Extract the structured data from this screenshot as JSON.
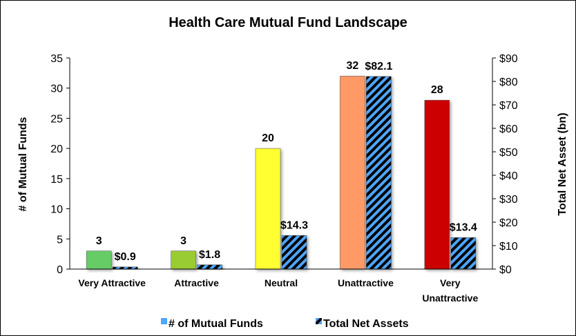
{
  "chart_data": {
    "type": "bar",
    "title": "Health Care Mutual Fund Landscape",
    "categories": [
      [
        "Very Attractive"
      ],
      [
        "Attractive"
      ],
      [
        "Neutral"
      ],
      [
        "Unattractive"
      ],
      [
        "Very",
        "Unattractive"
      ]
    ],
    "category_colors": [
      "#66cc66",
      "#99cc33",
      "#ffff33",
      "#ff9966",
      "#cc0000"
    ],
    "series": [
      {
        "name": "# of Mutual Funds",
        "axis": "left",
        "values": [
          3,
          3,
          20,
          32,
          28
        ],
        "labels": [
          "3",
          "3",
          "20",
          "32",
          "28"
        ],
        "legend_color": "#4da6ff"
      },
      {
        "name": "Total Net Assets",
        "axis": "right",
        "values": [
          0.9,
          1.8,
          14.3,
          82.1,
          13.4
        ],
        "labels": [
          "$0.9",
          "$1.8",
          "$14.3",
          "$82.1",
          "$13.4"
        ],
        "pattern": "diagonal-stripes",
        "colors": [
          "#000000",
          "#4da6ff"
        ]
      }
    ],
    "ylabel": "# of Mutual Funds",
    "ylim": [
      0,
      35
    ],
    "yticks": [
      "0",
      "5",
      "10",
      "15",
      "20",
      "25",
      "30",
      "35"
    ],
    "y2label": "Total Net Asset (bn)",
    "y2lim": [
      0,
      90
    ],
    "y2ticks": [
      "$0",
      "$10",
      "$20",
      "$30",
      "$40",
      "$50",
      "$60",
      "$70",
      "$80",
      "$90"
    ],
    "grid": false,
    "legend_position": "bottom"
  }
}
